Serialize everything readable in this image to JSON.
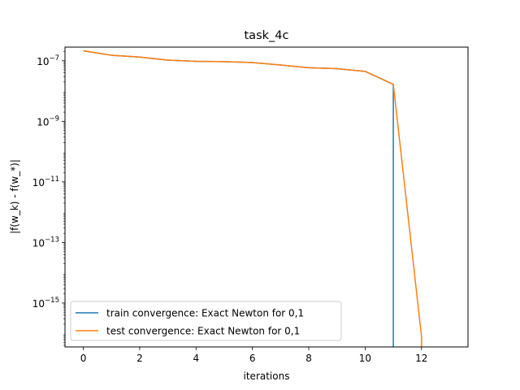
{
  "chart_data": {
    "type": "line",
    "title": "task_4c",
    "xlabel": "iterations",
    "ylabel": "|f(w_k) - f(w_*)|",
    "xlim": [
      -0.65,
      13.65
    ],
    "ylim_log10": [
      -16.45,
      -6.55
    ],
    "y_scale": "log",
    "x_ticks": [
      0,
      2,
      4,
      6,
      8,
      10,
      12
    ],
    "y_tick_exponents": [
      -15,
      -13,
      -11,
      -9,
      -7
    ],
    "grid": false,
    "legend_position": "lower-left",
    "series": [
      {
        "name": "train convergence: Exact Newton for 0,1",
        "color": "#1f77b4",
        "x": [
          0,
          1,
          2,
          3,
          4,
          5,
          6,
          7,
          8,
          9,
          10,
          11,
          11
        ],
        "log10_y": [
          -6.67,
          -6.82,
          -6.88,
          -6.98,
          -7.02,
          -7.03,
          -7.06,
          -7.14,
          -7.23,
          -7.26,
          -7.35,
          -7.78,
          -16.45
        ]
      },
      {
        "name": "test convergence: Exact Newton for 0,1",
        "color": "#ff7f0e",
        "x": [
          0,
          1,
          2,
          3,
          4,
          5,
          6,
          7,
          8,
          9,
          10,
          11,
          12,
          12
        ],
        "log10_y": [
          -6.67,
          -6.82,
          -6.88,
          -6.98,
          -7.02,
          -7.03,
          -7.06,
          -7.14,
          -7.23,
          -7.26,
          -7.35,
          -7.78,
          -16.1,
          -16.45
        ]
      }
    ]
  }
}
